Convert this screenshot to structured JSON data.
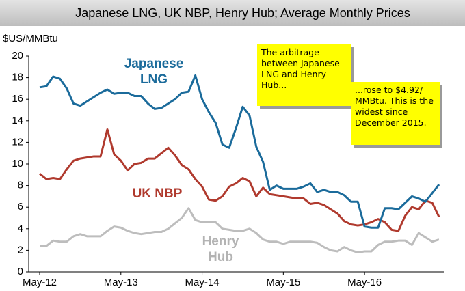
{
  "chart_data": {
    "type": "line",
    "title": "Japanese LNG, UK NBP, Henry Hub; Average Monthly Prices",
    "y_axis_label": "$US/MMBtu",
    "categories": [
      "May-12",
      null,
      null,
      null,
      null,
      null,
      null,
      null,
      null,
      null,
      null,
      null,
      "May-13",
      null,
      null,
      null,
      null,
      null,
      null,
      null,
      null,
      null,
      null,
      null,
      "May-14",
      null,
      null,
      null,
      null,
      null,
      null,
      null,
      null,
      null,
      null,
      null,
      "May-15",
      null,
      null,
      null,
      null,
      null,
      null,
      null,
      null,
      null,
      null,
      null,
      "May-16",
      null,
      null,
      null,
      null,
      null,
      null,
      null,
      null,
      null,
      null,
      null
    ],
    "series": [
      {
        "name": "Japanese LNG",
        "color": "#1b6b9b",
        "values": [
          17.1,
          17.2,
          18.1,
          17.9,
          17.0,
          15.6,
          15.4,
          15.8,
          16.2,
          16.6,
          16.9,
          16.5,
          16.6,
          16.6,
          16.3,
          16.3,
          15.6,
          15.1,
          15.2,
          15.6,
          16.0,
          16.6,
          16.7,
          18.2,
          16.0,
          14.8,
          13.8,
          11.8,
          11.5,
          13.3,
          15.3,
          14.5,
          11.6,
          10.2,
          7.6,
          8.0,
          7.7,
          7.7,
          7.7,
          7.9,
          8.2,
          7.4,
          7.6,
          7.4,
          7.4,
          7.1,
          6.5,
          6.5,
          4.2,
          4.1,
          4.1,
          5.9,
          5.9,
          5.8,
          6.4,
          7.0,
          6.8,
          6.5,
          7.3,
          8.1
        ]
      },
      {
        "name": "UK NBP",
        "color": "#b03a2e",
        "values": [
          9.1,
          8.6,
          8.7,
          8.6,
          9.5,
          10.3,
          10.5,
          10.6,
          10.7,
          10.7,
          13.2,
          10.9,
          10.3,
          9.4,
          10.0,
          10.1,
          10.5,
          10.5,
          11.0,
          11.5,
          10.8,
          9.9,
          9.5,
          8.6,
          7.9,
          6.7,
          6.6,
          7.0,
          7.9,
          8.2,
          8.7,
          8.4,
          7.0,
          7.8,
          7.2,
          7.1,
          7.0,
          6.9,
          6.8,
          6.8,
          6.3,
          6.4,
          6.2,
          5.8,
          5.4,
          4.7,
          4.4,
          4.3,
          4.4,
          4.6,
          4.9,
          4.6,
          3.9,
          3.8,
          5.2,
          6.0,
          5.8,
          6.6,
          6.4,
          5.1
        ]
      },
      {
        "name": "Henry Hub",
        "color": "#bdbdbd",
        "values": [
          2.4,
          2.4,
          2.9,
          2.8,
          2.8,
          3.3,
          3.5,
          3.3,
          3.3,
          3.3,
          3.8,
          4.2,
          4.1,
          3.8,
          3.6,
          3.5,
          3.6,
          3.7,
          3.7,
          4.0,
          4.5,
          5.0,
          5.9,
          4.8,
          4.6,
          4.6,
          4.6,
          4.0,
          3.9,
          3.8,
          3.8,
          4.0,
          3.6,
          3.0,
          2.8,
          2.8,
          2.6,
          2.8,
          2.8,
          2.8,
          2.8,
          2.7,
          2.3,
          2.0,
          1.9,
          2.3,
          2.0,
          1.8,
          1.9,
          1.9,
          2.5,
          2.8,
          2.8,
          2.9,
          2.9,
          2.5,
          3.6,
          3.2,
          2.8,
          3.0
        ]
      }
    ],
    "ylim": [
      0,
      20
    ],
    "yticks": [
      0,
      2,
      4,
      6,
      8,
      10,
      12,
      14,
      16,
      18,
      20
    ],
    "annotations": [
      "The arbitrage between Japanese LNG and Henry Hub...",
      "...rose to $4.92/ MMBtu. This is the widest since December 2015."
    ]
  }
}
